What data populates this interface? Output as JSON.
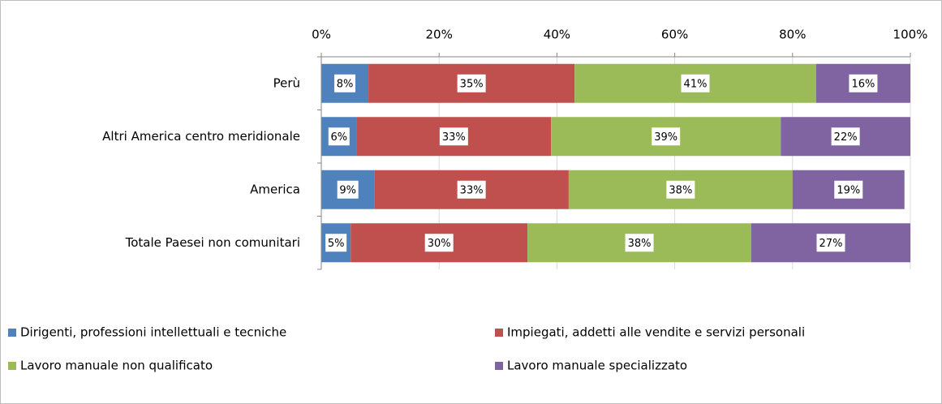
{
  "chart_data": {
    "type": "stacked_bar_horizontal",
    "categories": [
      "Perù",
      "Altri America centro meridionale",
      "America",
      "Totale Paesei non comunitari"
    ],
    "series": [
      {
        "name": "Dirigenti, professioni intellettuali e tecniche",
        "color": "#4f81bd",
        "values": [
          8,
          6,
          9,
          5
        ],
        "value_labels": [
          "8%",
          "6%",
          "9%",
          "5%"
        ]
      },
      {
        "name": "Impiegati, addetti alle vendite e servizi personali",
        "color": "#c0504d",
        "values": [
          35,
          33,
          33,
          30
        ],
        "value_labels": [
          "35%",
          "33%",
          "33%",
          "30%"
        ]
      },
      {
        "name": "Lavoro manuale non qualificato",
        "color": "#9bbb59",
        "values": [
          41,
          39,
          38,
          38
        ],
        "value_labels": [
          "41%",
          "39%",
          "38%",
          "38%"
        ]
      },
      {
        "name": "Lavoro manuale specializzato",
        "color": "#8064a2",
        "values": [
          16,
          22,
          19,
          27
        ],
        "value_labels": [
          "16%",
          "22%",
          "19%",
          "27%"
        ]
      }
    ],
    "xlim": [
      0,
      100
    ],
    "xticks": [
      {
        "value": 0,
        "label": "0%"
      },
      {
        "value": 20,
        "label": "20%"
      },
      {
        "value": 40,
        "label": "40%"
      },
      {
        "value": 60,
        "label": "60%"
      },
      {
        "value": 80,
        "label": "80%"
      },
      {
        "value": 100,
        "label": "100%"
      }
    ],
    "grid": true,
    "legend": "bottom"
  }
}
